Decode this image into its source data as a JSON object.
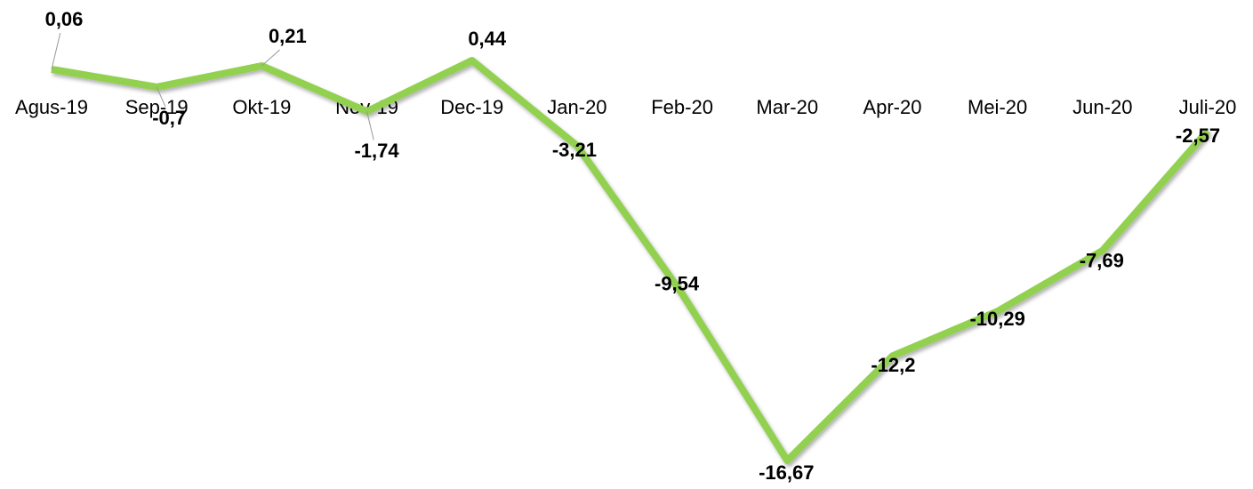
{
  "chart_data": {
    "type": "line",
    "categories": [
      "Agus-19",
      "Sep-19",
      "Okt-19",
      "Nov-19",
      "Dec-19",
      "Jan-20",
      "Feb-20",
      "Mar-20",
      "Apr-20",
      "Mei-20",
      "Jun-20",
      "Juli-20"
    ],
    "series": [
      {
        "color": "#92d050",
        "values": [
          0.06,
          -0.7,
          0.21,
          -1.74,
          0.44,
          -3.21,
          -9.54,
          -16.67,
          -12.2,
          -10.29,
          -7.69,
          -2.57
        ],
        "value_labels": [
          "0,06",
          "-0,7",
          "0,21",
          "-1,74",
          "0,44",
          "-3,21",
          "-9,54",
          "-16,67",
          "-12,2",
          "-10,29",
          "-7,69",
          "-2,57"
        ]
      }
    ]
  }
}
